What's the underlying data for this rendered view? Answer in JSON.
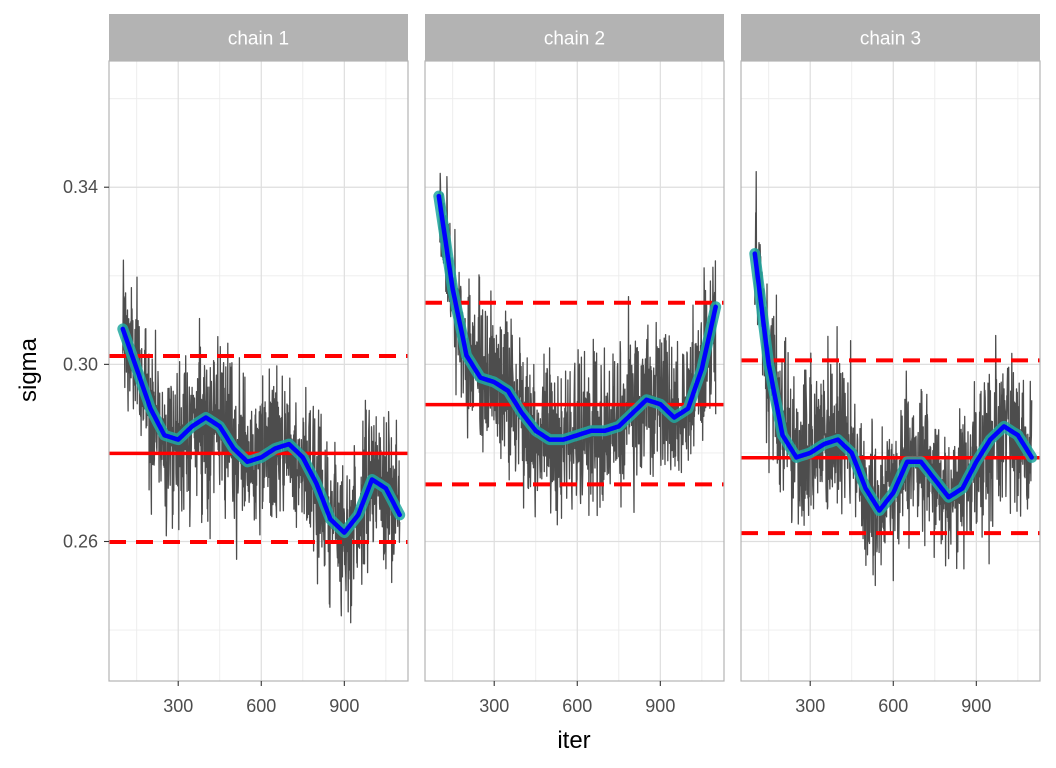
{
  "chart_data": {
    "type": "line",
    "facet_variable": "chain",
    "xlabel": "iter",
    "ylabel": "sigma",
    "xlim": [
      50,
      1130
    ],
    "ylim": [
      0.2285,
      0.3685
    ],
    "x_ticks": [
      300,
      600,
      900
    ],
    "x_tick_labels": [
      "300",
      "600",
      "900"
    ],
    "y_ticks": [
      0.26,
      0.3,
      0.34
    ],
    "y_tick_labels": [
      "0.26",
      "0.30",
      "0.34"
    ],
    "grid": true,
    "colors": {
      "trace": "#4d4d4d",
      "smooth": "#0000ff",
      "ribbon": "#21a8a0",
      "mean_line": "#ff0000",
      "interval_line": "#ff0000",
      "strip_bg": "#b3b3b3",
      "grid": "#dedede",
      "panel_border": "#b3b3b3"
    },
    "panels": [
      {
        "label": "chain 1",
        "mean": 0.2799,
        "lower": 0.2599,
        "upper": 0.3019,
        "trace_range": [
          0.2335,
          0.3325
        ],
        "smooth": {
          "x": [
            100,
            150,
            200,
            250,
            300,
            350,
            400,
            450,
            500,
            550,
            600,
            650,
            700,
            750,
            800,
            850,
            900,
            950,
            1000,
            1050,
            1100
          ],
          "y": [
            0.308,
            0.299,
            0.29,
            0.284,
            0.283,
            0.286,
            0.288,
            0.286,
            0.281,
            0.278,
            0.279,
            0.281,
            0.282,
            0.279,
            0.273,
            0.265,
            0.262,
            0.266,
            0.274,
            0.272,
            0.266
          ]
        }
      },
      {
        "label": "chain 2",
        "mean": 0.2909,
        "lower": 0.2729,
        "upper": 0.3139,
        "trace_range": [
          0.2565,
          0.3505
        ],
        "smooth": {
          "x": [
            100,
            150,
            200,
            250,
            300,
            350,
            400,
            450,
            500,
            550,
            600,
            650,
            700,
            750,
            800,
            850,
            900,
            950,
            1000,
            1050,
            1100
          ],
          "y": [
            0.338,
            0.317,
            0.302,
            0.297,
            0.296,
            0.294,
            0.289,
            0.285,
            0.283,
            0.283,
            0.284,
            0.285,
            0.285,
            0.286,
            0.289,
            0.292,
            0.291,
            0.288,
            0.29,
            0.299,
            0.313
          ]
        }
      },
      {
        "label": "chain 3",
        "mean": 0.2789,
        "lower": 0.2619,
        "upper": 0.3009,
        "trace_range": [
          0.2345,
          0.3435
        ],
        "smooth": {
          "x": [
            100,
            150,
            200,
            250,
            300,
            350,
            400,
            450,
            500,
            550,
            600,
            650,
            700,
            750,
            800,
            850,
            900,
            950,
            1000,
            1050,
            1100
          ],
          "y": [
            0.325,
            0.3,
            0.284,
            0.279,
            0.28,
            0.282,
            0.283,
            0.28,
            0.272,
            0.267,
            0.271,
            0.278,
            0.278,
            0.274,
            0.27,
            0.272,
            0.278,
            0.283,
            0.286,
            0.284,
            0.279
          ]
        }
      }
    ]
  }
}
